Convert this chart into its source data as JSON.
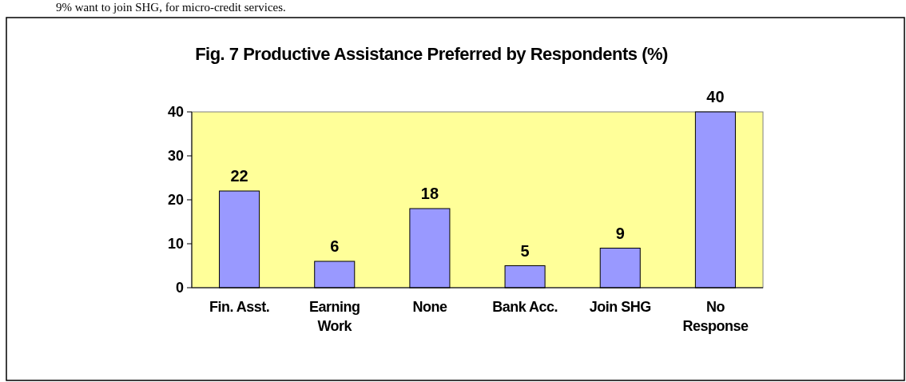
{
  "chart_data": {
    "type": "bar",
    "title": "Fig. 7 Productive Assistance Preferred by Respondents (%)",
    "categories": [
      "Fin. Asst.",
      "Earning Work",
      "None",
      "Bank Acc.",
      "Join SHG",
      "No Response"
    ],
    "values": [
      22,
      6,
      18,
      5,
      9,
      40
    ],
    "color": "#9999ff",
    "ylim": [
      0,
      40
    ],
    "yticks": [
      0,
      10,
      20,
      30,
      40
    ],
    "data_labels": true,
    "annotations": [
      "9% want to join SHG, for micro-credit services."
    ]
  }
}
